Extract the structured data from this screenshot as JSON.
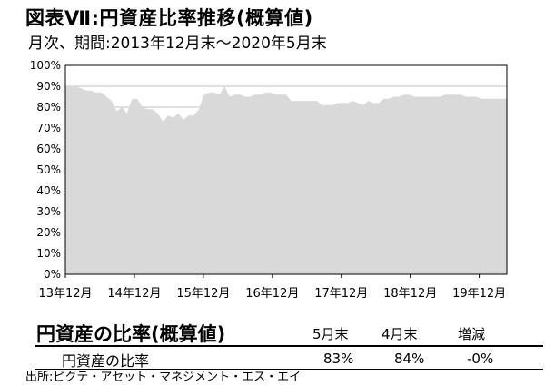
{
  "title": "図表Ⅶ:円資産比率推移(概算値)",
  "subtitle": "月次、期間:2013年12月末〜2020年5月末",
  "chart_data": {
    "type": "area",
    "title": "円資産比率推移(概算値)",
    "xlabel": "",
    "ylabel": "",
    "ylim": [
      0,
      100
    ],
    "yticks": [
      "0%",
      "10%",
      "20%",
      "30%",
      "40%",
      "50%",
      "60%",
      "70%",
      "80%",
      "90%",
      "100%"
    ],
    "xticks": [
      "13年12月",
      "14年12月",
      "15年12月",
      "16年12月",
      "17年12月",
      "18年12月",
      "19年12月"
    ],
    "grid": true,
    "color": "#d9d9d9",
    "series": [
      {
        "values": [
          90,
          90,
          90,
          89,
          88,
          88,
          87,
          87,
          85,
          83,
          78,
          80,
          77,
          84,
          84,
          80,
          79,
          79,
          77,
          73,
          76,
          75,
          77,
          74,
          76,
          76,
          79,
          86,
          87,
          87,
          86,
          90,
          85,
          86,
          86,
          85,
          85,
          86,
          86,
          87,
          87,
          86,
          86,
          86,
          83,
          83,
          83,
          83,
          83,
          83,
          81,
          81,
          81,
          82,
          82,
          82,
          83,
          82,
          81,
          83,
          82,
          82,
          84,
          84,
          85,
          85,
          86,
          86,
          85,
          85,
          85,
          85,
          85,
          85,
          86,
          86,
          86,
          86,
          85,
          85,
          85,
          84,
          84,
          84,
          84,
          84,
          84
        ]
      }
    ]
  },
  "table": {
    "title": "円資産の比率(概算値)",
    "columns": [
      "5月末",
      "4月末",
      "増減"
    ],
    "rows": [
      {
        "label": "円資産の比率",
        "values": [
          "83%",
          "84%",
          "-0%"
        ]
      }
    ]
  },
  "source": "出所:ピクテ・アセット・マネジメント・エス・エイ"
}
